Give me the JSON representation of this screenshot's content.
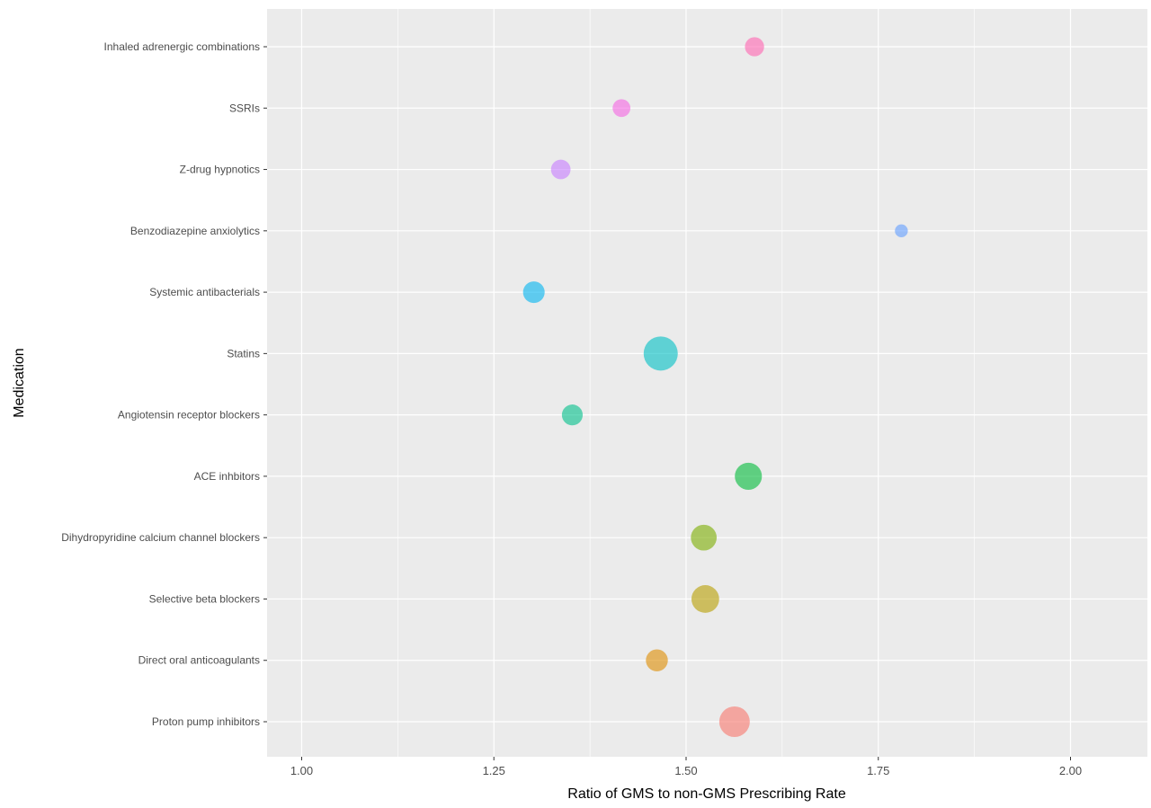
{
  "chart_data": {
    "type": "scatter",
    "title": "",
    "xlabel": "Ratio of GMS to non-GMS Prescribing Rate",
    "ylabel": "Medication",
    "xlim": [
      0.955,
      2.1
    ],
    "xticks": [
      1.0,
      1.25,
      1.5,
      1.75,
      2.0
    ],
    "xtick_labels": [
      "1.00",
      "1.25",
      "1.50",
      "1.75",
      "2.00"
    ],
    "grid": true,
    "legend": "none",
    "categories": [
      "Proton pump inhibitors",
      "Direct oral anticoagulants",
      "Selective beta blockers",
      "Dihydropyridine calcium channel blockers",
      "ACE inhbitors",
      "Angiotensin receptor blockers",
      "Statins",
      "Systemic antibacterials",
      "Benzodiazepine anxiolytics",
      "Z-drug hypnotics",
      "SSRIs",
      "Inhaled adrenergic combinations"
    ],
    "points": [
      {
        "category": "Proton pump inhibitors",
        "x": 1.563,
        "size": 5.6,
        "color": "#F8766D"
      },
      {
        "category": "Direct oral anticoagulants",
        "x": 1.462,
        "size": 2.9,
        "color": "#DE8C00"
      },
      {
        "category": "Selective beta blockers",
        "x": 1.525,
        "size": 4.6,
        "color": "#B79F00"
      },
      {
        "category": "Dihydropyridine calcium channel blockers",
        "x": 1.523,
        "size": 4.0,
        "color": "#7CAE00"
      },
      {
        "category": "ACE inhbitors",
        "x": 1.581,
        "size": 4.4,
        "color": "#00BA38"
      },
      {
        "category": "Angiotensin receptor blockers",
        "x": 1.352,
        "size": 2.6,
        "color": "#00C08B"
      },
      {
        "category": "Statins",
        "x": 1.467,
        "size": 7.0,
        "color": "#00BFC4"
      },
      {
        "category": "Systemic antibacterials",
        "x": 1.302,
        "size": 2.8,
        "color": "#00B4F0"
      },
      {
        "category": "Benzodiazepine anxiolytics",
        "x": 1.78,
        "size": 1.0,
        "color": "#619CFF"
      },
      {
        "category": "Z-drug hypnotics",
        "x": 1.337,
        "size": 2.3,
        "color": "#C77CFF"
      },
      {
        "category": "SSRIs",
        "x": 1.416,
        "size": 1.9,
        "color": "#F564E3"
      },
      {
        "category": "Inhaled adrenergic combinations",
        "x": 1.589,
        "size": 2.2,
        "color": "#FF64B0"
      }
    ]
  }
}
